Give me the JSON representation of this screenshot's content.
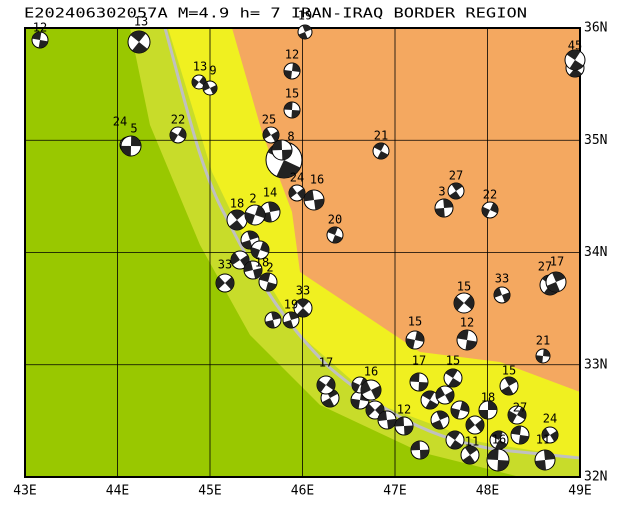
{
  "title": "E202406302057A M=4.9 h= 7 IRAN-IRAQ BORDER REGION",
  "map": {
    "lon_labels": [
      "43E",
      "44E",
      "45E",
      "46E",
      "47E",
      "48E",
      "49E"
    ],
    "lat_labels": [
      "32N",
      "33N",
      "34N",
      "35N",
      "36N"
    ]
  },
  "events": [
    {
      "depth": "12"
    },
    {
      "depth": "13"
    },
    {
      "depth": "19"
    },
    {
      "depth": "12"
    },
    {
      "depth": "13"
    },
    {
      "depth": "9"
    },
    {
      "depth": "15"
    },
    {
      "depth": "45"
    },
    {
      "depth": "24"
    },
    {
      "depth": "5"
    },
    {
      "depth": "22"
    },
    {
      "depth": "25"
    },
    {
      "depth": "8"
    },
    {
      "depth": "21"
    },
    {
      "depth": "27"
    },
    {
      "depth": "3"
    },
    {
      "depth": "22"
    },
    {
      "depth": "24"
    },
    {
      "depth": "16"
    },
    {
      "depth": "20"
    },
    {
      "depth": "18"
    },
    {
      "depth": "14"
    },
    {
      "depth": "2"
    },
    {
      "depth": "33"
    },
    {
      "depth": "18"
    },
    {
      "depth": "2"
    },
    {
      "depth": "33"
    },
    {
      "depth": "19"
    },
    {
      "depth": "15"
    },
    {
      "depth": "15"
    },
    {
      "depth": "33"
    },
    {
      "depth": "12"
    },
    {
      "depth": "27"
    },
    {
      "depth": "17"
    },
    {
      "depth": "21"
    },
    {
      "depth": "17"
    },
    {
      "depth": "16"
    },
    {
      "depth": "17"
    },
    {
      "depth": "15"
    },
    {
      "depth": "15"
    },
    {
      "depth": "18"
    },
    {
      "depth": "27"
    },
    {
      "depth": "24"
    },
    {
      "depth": "12"
    },
    {
      "depth": "16"
    },
    {
      "depth": "11"
    },
    {
      "depth": "11"
    }
  ]
}
